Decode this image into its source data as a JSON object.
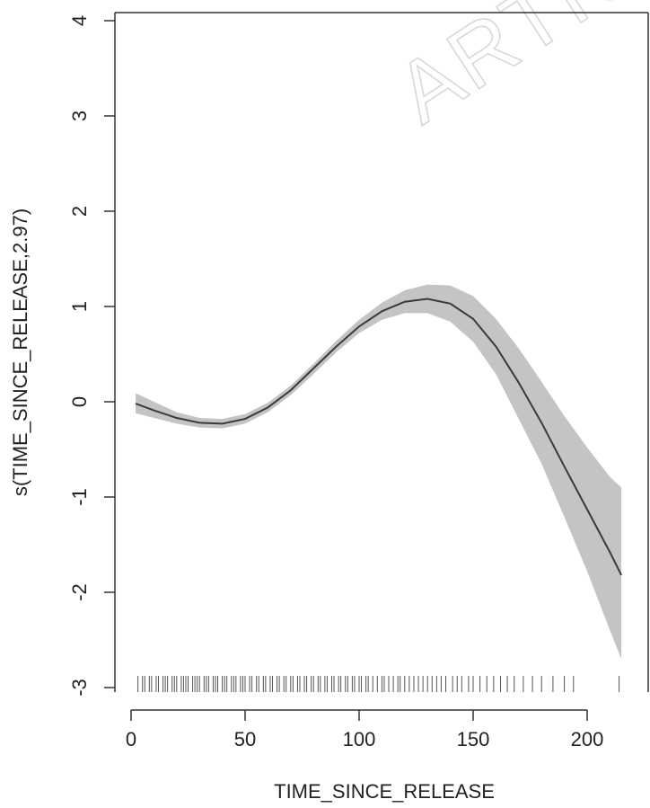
{
  "chart_data": {
    "type": "line",
    "title": "",
    "xlabel": "TIME_SINCE_RELEASE",
    "ylabel": "s(TIME_SINCE_RELEASE,2.97)",
    "xlim": [
      0,
      215
    ],
    "ylim": [
      -3,
      4
    ],
    "x_ticks": [
      "0",
      "50",
      "100",
      "150",
      "200"
    ],
    "y_ticks": [
      "-3",
      "-2",
      "-1",
      "0",
      "1",
      "2",
      "3",
      "4"
    ],
    "grid": false,
    "legend": "none",
    "watermark": "ARTIC",
    "colors": {
      "line": "#3a3a3a",
      "band": "#c4c4c4",
      "axis": "#333333",
      "rug": "#555555"
    },
    "series": [
      {
        "x": [
          2,
          10,
          20,
          30,
          40,
          50,
          60,
          70,
          80,
          90,
          100,
          110,
          120,
          130,
          140,
          150,
          160,
          170,
          180,
          190,
          200,
          210,
          215
        ],
        "values": [
          -0.02,
          -0.09,
          -0.17,
          -0.22,
          -0.23,
          -0.18,
          -0.06,
          0.12,
          0.35,
          0.58,
          0.79,
          0.95,
          1.05,
          1.08,
          1.03,
          0.87,
          0.58,
          0.2,
          -0.22,
          -0.68,
          -1.13,
          -1.58,
          -1.82
        ],
        "upper": [
          0.09,
          0.0,
          -0.11,
          -0.17,
          -0.18,
          -0.13,
          -0.01,
          0.17,
          0.4,
          0.64,
          0.86,
          1.04,
          1.17,
          1.23,
          1.22,
          1.11,
          0.87,
          0.56,
          0.21,
          -0.15,
          -0.48,
          -0.79,
          -0.9
        ],
        "lower": [
          -0.12,
          -0.17,
          -0.23,
          -0.27,
          -0.28,
          -0.23,
          -0.11,
          0.07,
          0.29,
          0.52,
          0.72,
          0.86,
          0.93,
          0.93,
          0.84,
          0.63,
          0.29,
          -0.18,
          -0.65,
          -1.21,
          -1.78,
          -2.4,
          -2.7
        ]
      }
    ],
    "rug": [
      3,
      5,
      6,
      8,
      9,
      11,
      12,
      14,
      15,
      16,
      18,
      19,
      20,
      22,
      23,
      24,
      25,
      27,
      28,
      29,
      30,
      32,
      33,
      34,
      36,
      37,
      38,
      40,
      41,
      42,
      44,
      45,
      46,
      48,
      49,
      50,
      52,
      53,
      55,
      56,
      58,
      59,
      61,
      62,
      64,
      65,
      67,
      68,
      70,
      71,
      73,
      74,
      76,
      77,
      79,
      80,
      82,
      83,
      85,
      86,
      88,
      89,
      91,
      92,
      94,
      95,
      97,
      98,
      100,
      101,
      103,
      104,
      106,
      108,
      110,
      111,
      113,
      115,
      117,
      118,
      120,
      122,
      124,
      126,
      128,
      130,
      132,
      134,
      136,
      138,
      141,
      143,
      145,
      148,
      150,
      153,
      156,
      159,
      162,
      165,
      168,
      172,
      176,
      180,
      185,
      190,
      194,
      214
    ]
  }
}
